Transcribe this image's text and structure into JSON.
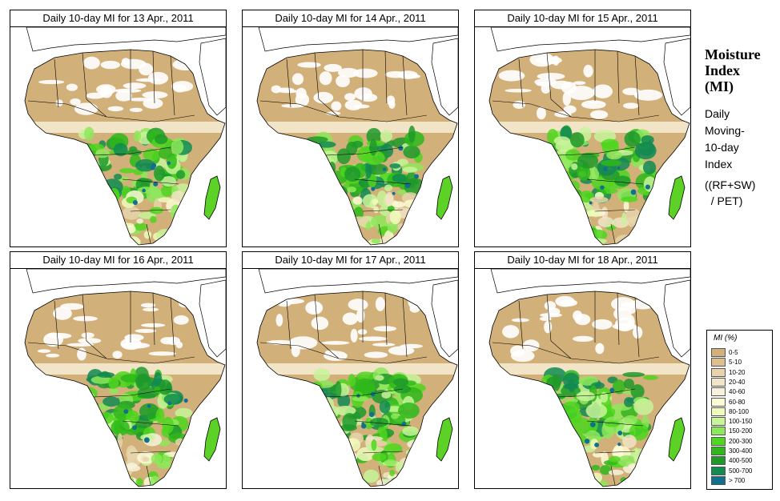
{
  "panels": [
    {
      "title": "Daily 10-day MI for 13 Apr., 2011"
    },
    {
      "title": "Daily 10-day MI for 14 Apr., 2011"
    },
    {
      "title": "Daily 10-day MI for 15 Apr., 2011"
    },
    {
      "title": "Daily 10-day MI for 16 Apr., 2011"
    },
    {
      "title": "Daily 10-day MI for 17 Apr., 2011"
    },
    {
      "title": "Daily 10-day MI for 18 Apr., 2011"
    }
  ],
  "side": {
    "title_line1": "Moisture",
    "title_line2": "Index",
    "title_line3": "(MI)",
    "desc_line1": "Daily",
    "desc_line2": "Moving-",
    "desc_line3": "10-day",
    "desc_line4": "Index",
    "formula_line1": "((RF+SW)",
    "formula_line2": "  / PET)"
  },
  "legend": {
    "title": "MI (%)",
    "items": [
      {
        "label": "0-5",
        "color": "#d2b07a"
      },
      {
        "label": "5-10",
        "color": "#dcc08e"
      },
      {
        "label": "10-20",
        "color": "#e8d3ac"
      },
      {
        "label": "20-40",
        "color": "#f2e4c6"
      },
      {
        "label": "40-60",
        "color": "#f8f2dc"
      },
      {
        "label": "60-80",
        "color": "#fbfbd6"
      },
      {
        "label": "80-100",
        "color": "#eefbbc"
      },
      {
        "label": "100-150",
        "color": "#c8f59a"
      },
      {
        "label": "150-200",
        "color": "#8ee85c"
      },
      {
        "label": "200-300",
        "color": "#4fd61e"
      },
      {
        "label": "300-400",
        "color": "#2eb81a"
      },
      {
        "label": "400-500",
        "color": "#1f9a2a"
      },
      {
        "label": "500-700",
        "color": "#128a52"
      },
      {
        "label": "> 700",
        "color": "#136f8e"
      }
    ]
  }
}
